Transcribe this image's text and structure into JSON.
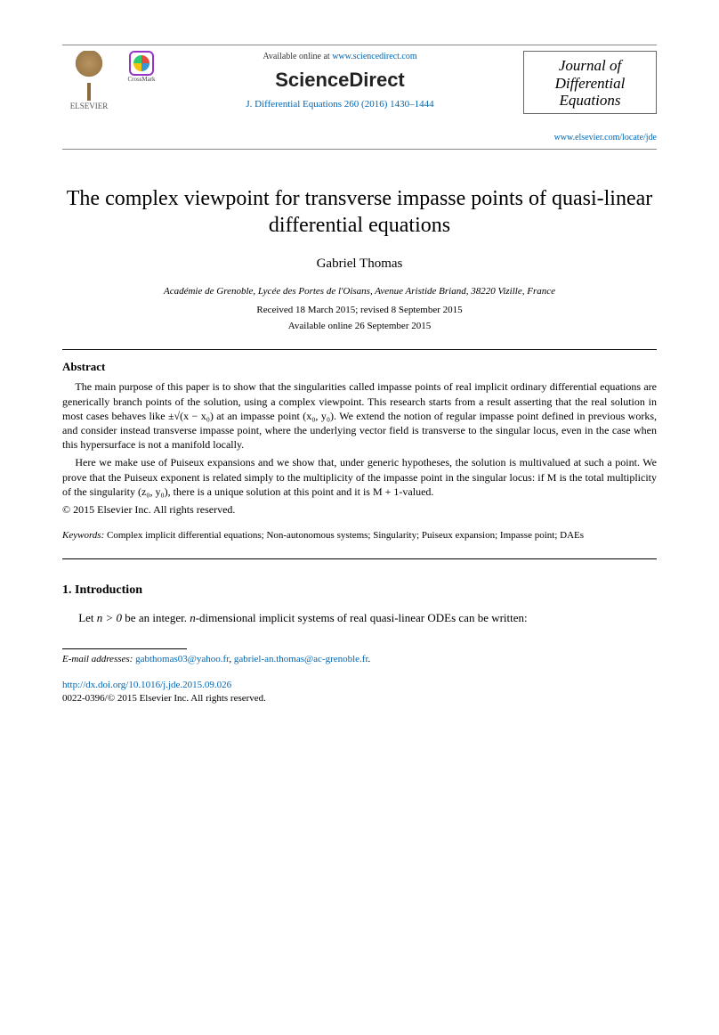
{
  "header": {
    "elsevier_label": "ELSEVIER",
    "crossmark_label": "CrossMark",
    "available_prefix": "Available online at ",
    "available_url": "www.sciencedirect.com",
    "sd_logo": "ScienceDirect",
    "citation_journal": "J. Differential Equations",
    "citation_vol": "260",
    "citation_year": "(2016)",
    "citation_pages": "1430–1444",
    "journal_name_line1": "Journal of",
    "journal_name_line2": "Differential",
    "journal_name_line3": "Equations",
    "locate_url": "www.elsevier.com/locate/jde"
  },
  "article": {
    "title": "The complex viewpoint for transverse impasse points of quasi-linear differential equations",
    "author": "Gabriel Thomas",
    "affiliation": "Académie de Grenoble, Lycée des Portes de l'Oisans, Avenue Aristide Briand, 38220 Vizille, France",
    "received": "Received 18 March 2015; revised 8 September 2015",
    "available": "Available online 26 September 2015"
  },
  "abstract": {
    "heading": "Abstract",
    "p1": "The main purpose of this paper is to show that the singularities called impasse points of real implicit ordinary differential equations are generically branch points of the solution, using a complex viewpoint. This research starts from a result asserting that the real solution in most cases behaves like ±√(x − x₀) at an impasse point (x₀, y₀). We extend the notion of regular impasse point defined in previous works, and consider instead transverse impasse point, where the underlying vector field is transverse to the singular locus, even in the case when this hypersurface is not a manifold locally.",
    "p2": "Here we make use of Puiseux expansions and we show that, under generic hypotheses, the solution is multivalued at such a point. We prove that the Puiseux exponent is related simply to the multiplicity of the impasse point in the singular locus: if M is the total multiplicity of the singularity (z₀, y₀), there is a unique solution at this point and it is M + 1-valued.",
    "copyright": "© 2015 Elsevier Inc. All rights reserved."
  },
  "keywords": {
    "label": "Keywords:",
    "text": "Complex implicit differential equations; Non-autonomous systems; Singularity; Puiseux expansion; Impasse point; DAEs"
  },
  "intro": {
    "heading": "1.  Introduction",
    "body_prefix": "Let ",
    "body_math": "n > 0",
    "body_mid": " be an integer. ",
    "body_math2": "n",
    "body_suffix": "-dimensional implicit systems of real quasi-linear ODEs can be written:"
  },
  "footnote": {
    "label": "E-mail addresses:",
    "email1": "gabthomas03@yahoo.fr",
    "sep": ", ",
    "email2": "gabriel-an.thomas@ac-grenoble.fr",
    "end": "."
  },
  "footer": {
    "doi_url": "http://dx.doi.org/10.1016/j.jde.2015.09.026",
    "issn_line": "0022-0396/© 2015 Elsevier Inc. All rights reserved."
  },
  "colors": {
    "link": "#0066b3",
    "text": "#000000",
    "rule": "#000000"
  }
}
